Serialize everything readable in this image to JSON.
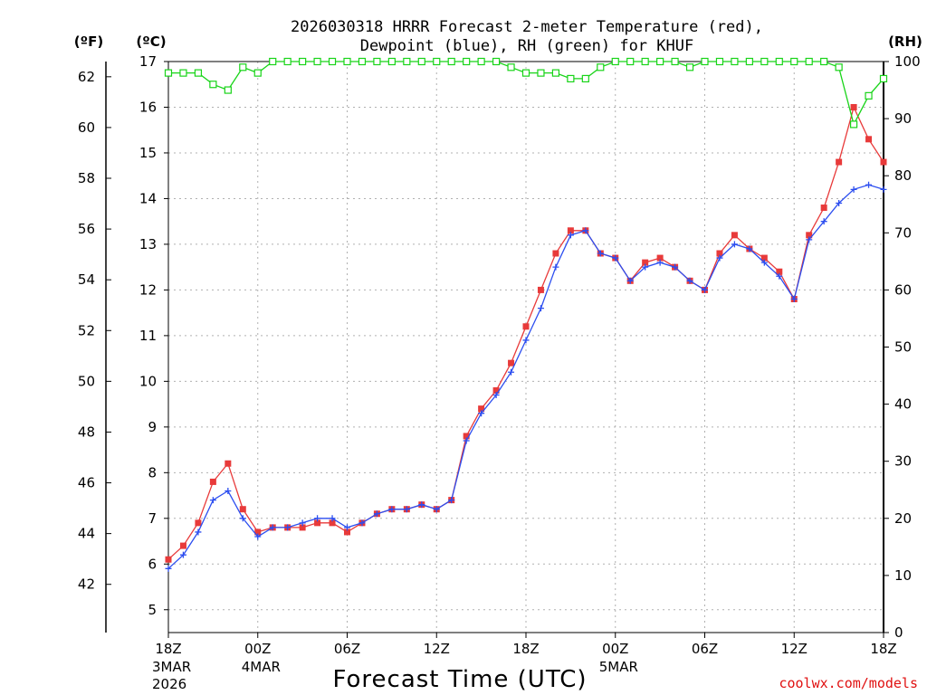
{
  "chart_data": {
    "type": "line",
    "title_lines": [
      "2026030318 HRRR Forecast 2-meter Temperature (red),",
      "Dewpoint (blue), RH (green) for KHUF"
    ],
    "xlabel": "Forecast Time (UTC)",
    "credit": "coolwx.com/models",
    "left_axis_f": {
      "label": "(ºF)",
      "ticks": [
        42,
        44,
        46,
        48,
        50,
        52,
        54,
        56,
        58,
        60,
        62
      ]
    },
    "left_axis_c": {
      "label": "(ºC)",
      "ticks": [
        5,
        6,
        7,
        8,
        9,
        10,
        11,
        12,
        13,
        14,
        15,
        16,
        17
      ],
      "ylim": [
        4.5,
        17
      ]
    },
    "right_axis_rh": {
      "label": "(RH)",
      "ticks": [
        0,
        10,
        20,
        30,
        40,
        50,
        60,
        70,
        80,
        90,
        100
      ],
      "ylim": [
        0,
        100
      ]
    },
    "x_ticks": [
      {
        "hour": 0,
        "label": "18Z",
        "date": "3MAR",
        "year": "2026"
      },
      {
        "hour": 6,
        "label": "00Z",
        "date": "4MAR"
      },
      {
        "hour": 12,
        "label": "06Z"
      },
      {
        "hour": 18,
        "label": "12Z"
      },
      {
        "hour": 24,
        "label": "18Z"
      },
      {
        "hour": 30,
        "label": "00Z",
        "date": "5MAR"
      },
      {
        "hour": 36,
        "label": "06Z"
      },
      {
        "hour": 42,
        "label": "12Z"
      },
      {
        "hour": 48,
        "label": "18Z"
      }
    ],
    "xlim": [
      0,
      48
    ],
    "series": [
      {
        "name": "Temperature",
        "units": "C",
        "color": "#e83a3a",
        "marker": "filled-square",
        "values": [
          6.1,
          6.4,
          6.9,
          7.8,
          8.2,
          7.2,
          6.7,
          6.8,
          6.8,
          6.8,
          6.9,
          6.9,
          6.7,
          6.9,
          7.1,
          7.2,
          7.2,
          7.3,
          7.2,
          7.4,
          8.8,
          9.4,
          9.8,
          10.4,
          11.2,
          12.0,
          12.8,
          13.3,
          13.3,
          12.8,
          12.7,
          12.2,
          12.6,
          12.7,
          12.5,
          12.2,
          12.0,
          12.8,
          13.2,
          12.9,
          12.7,
          12.4,
          11.8,
          13.2,
          13.8,
          14.8,
          16.0,
          15.3,
          14.8
        ]
      },
      {
        "name": "Dewpoint",
        "units": "C",
        "color": "#2c4ef0",
        "marker": "plus",
        "values": [
          5.9,
          6.2,
          6.7,
          7.4,
          7.6,
          7.0,
          6.6,
          6.8,
          6.8,
          6.9,
          7.0,
          7.0,
          6.8,
          6.9,
          7.1,
          7.2,
          7.2,
          7.3,
          7.2,
          7.4,
          8.7,
          9.3,
          9.7,
          10.2,
          10.9,
          11.6,
          12.5,
          13.2,
          13.3,
          12.8,
          12.7,
          12.2,
          12.5,
          12.6,
          12.5,
          12.2,
          12.0,
          12.7,
          13.0,
          12.9,
          12.6,
          12.3,
          11.8,
          13.1,
          13.5,
          13.9,
          14.2,
          14.3,
          14.2
        ]
      },
      {
        "name": "RH",
        "units": "%",
        "color": "#18d418",
        "marker": "open-square",
        "values": [
          98,
          98,
          98,
          96,
          95,
          99,
          98,
          100,
          100,
          100,
          100,
          100,
          100,
          100,
          100,
          100,
          100,
          100,
          100,
          100,
          100,
          100,
          100,
          99,
          98,
          98,
          98,
          97,
          97,
          99,
          100,
          100,
          100,
          100,
          100,
          99,
          100,
          100,
          100,
          100,
          100,
          100,
          100,
          100,
          100,
          99,
          89,
          94,
          97
        ]
      }
    ]
  }
}
